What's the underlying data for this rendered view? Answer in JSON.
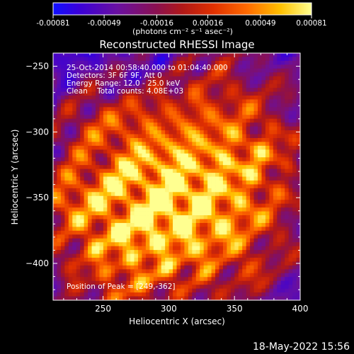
{
  "chart_data": {
    "type": "heatmap",
    "title": "Reconstructed RHESSI Image",
    "xlabel": "Heliocentric X (arcsec)",
    "ylabel": "Heliocentric Y (arcsec)",
    "xlim": [
      212,
      400
    ],
    "ylim": [
      -428,
      -240
    ],
    "x_ticks": [
      250,
      300,
      350,
      400
    ],
    "y_ticks": [
      -250,
      -300,
      -350,
      -400
    ],
    "colorbar": {
      "range": [
        -0.00081,
        0.00081
      ],
      "tick_values": [
        -0.00081,
        -0.00049,
        -0.00016,
        0.00016,
        0.00049,
        0.00081
      ],
      "tick_labels": [
        "-0.00081",
        "-0.00049",
        "-0.00016",
        "0.00016",
        "0.00049",
        "0.00081"
      ],
      "unit_label": "(photons cm⁻² s⁻¹ asec⁻²)"
    },
    "annotations": [
      "25-Oct-2014 00:58:40.000 to 01:04:40.000",
      "Detectors: 3F 6F 9F, Att 0",
      "Energy Range: 12.0 - 25.0 keV",
      "Clean    Total counts: 4.08E+03"
    ],
    "peak_label": "Position of Peak = [249,-362]",
    "peak_position": [
      249,
      -362
    ]
  },
  "footer": {
    "date": "18-May-2022 15:56"
  }
}
